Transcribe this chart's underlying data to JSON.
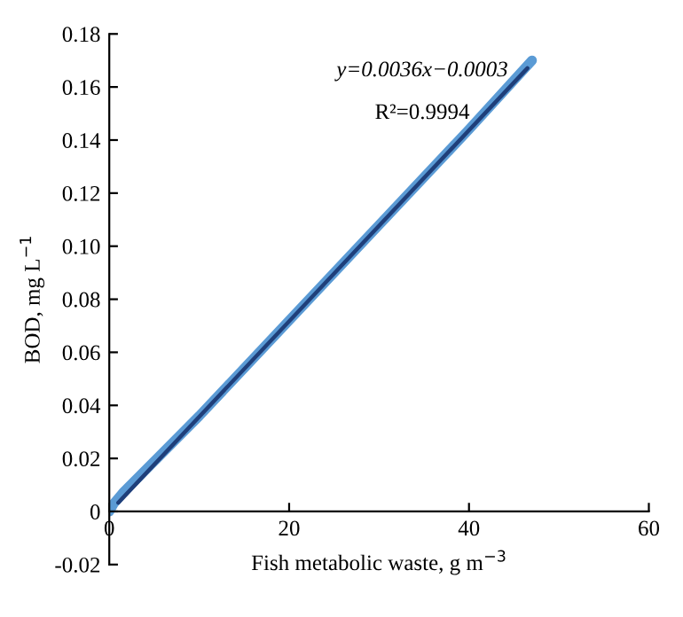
{
  "chart_data": {
    "type": "line",
    "xlabel": "Fish metabolic waste, g m$^{−3}$",
    "ylabel": "BOD, mg L$^{−1}$",
    "xlim": [
      0,
      60
    ],
    "xticks": [
      0,
      20,
      40,
      60
    ],
    "ylim": [
      -0.02,
      0.18
    ],
    "yticks": [
      {
        "value": -0.02,
        "label": "-0.02"
      },
      0,
      {
        "value": 0.02,
        "label": "0.02"
      },
      {
        "value": 0.04,
        "label": "0.04"
      },
      {
        "value": 0.06,
        "label": "0.06"
      },
      {
        "value": 0.08,
        "label": "0.08"
      },
      {
        "value": 0.1,
        "label": "0.10"
      },
      {
        "value": 0.12,
        "label": "0.12"
      },
      {
        "value": 0.14,
        "label": "0.14"
      },
      {
        "value": 0.16,
        "label": "0.16"
      },
      {
        "value": 0.18,
        "label": "0.18"
      }
    ],
    "grid": false,
    "legend": false,
    "marker": "none",
    "line_style": "solid",
    "series": [
      {
        "color": "#5b9bd5",
        "x": [
          0,
          0.5,
          1,
          1.5,
          10,
          20,
          30,
          40,
          47
        ],
        "values": [
          0,
          0.003,
          0.005,
          0.007,
          0.036,
          0.072,
          0.108,
          0.144,
          0.17
        ]
      },
      {
        "color": "#1f3f7a",
        "x": [
          1,
          46.5
        ],
        "values": [
          0.0033,
          0.1671
        ]
      }
    ],
    "annotations": [
      "y=0.0036x−0.0003",
      "R²=0.9994"
    ]
  }
}
